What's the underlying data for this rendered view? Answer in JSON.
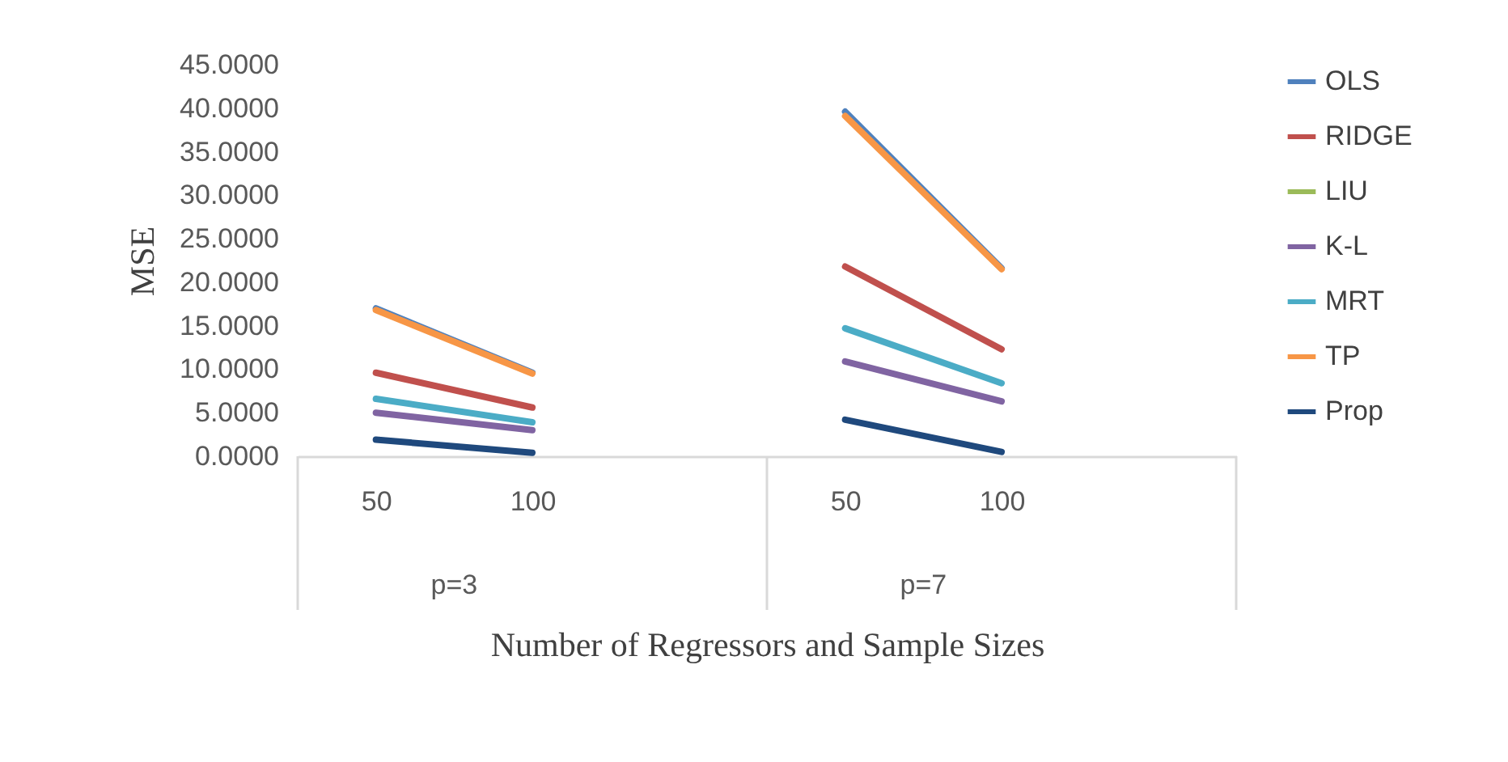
{
  "chart_data": {
    "type": "line",
    "xlabel": "Number of Regressors and Sample Sizes",
    "ylabel": "MSE",
    "categories": [
      "50",
      "100",
      null,
      "50",
      "100",
      null
    ],
    "annotations": [
      "p=3",
      "p=7"
    ],
    "series": [
      {
        "name": "OLS",
        "color": "#4f81bd",
        "values": [
          17.0,
          9.6,
          null,
          39.6,
          21.6,
          null
        ]
      },
      {
        "name": "RIDGE",
        "color": "#c0504d",
        "values": [
          9.6,
          5.6,
          null,
          21.8,
          12.3,
          null
        ]
      },
      {
        "name": "LIU",
        "color": "#9bbb59",
        "values": [
          null,
          null,
          null,
          null,
          null,
          null
        ]
      },
      {
        "name": "K-L",
        "color": "#8064a2",
        "values": [
          5.0,
          3.0,
          null,
          10.9,
          6.3,
          null
        ]
      },
      {
        "name": "MRT",
        "color": "#4bacc6",
        "values": [
          6.6,
          3.9,
          null,
          14.7,
          8.4,
          null
        ]
      },
      {
        "name": "TP",
        "color": "#f79646",
        "values": [
          16.8,
          9.5,
          null,
          39.1,
          21.5,
          null
        ]
      },
      {
        "name": "Prop",
        "color": "#1f497d",
        "values": [
          1.9,
          0.4,
          null,
          4.2,
          0.5,
          null
        ]
      }
    ],
    "ylim": [
      0,
      45
    ],
    "yticks": [
      {
        "value": 0,
        "label": "0.0000"
      },
      {
        "value": 5,
        "label": "5.0000"
      },
      {
        "value": 10,
        "label": "10.0000"
      },
      {
        "value": 15,
        "label": "15.0000"
      },
      {
        "value": 20,
        "label": "20.0000"
      },
      {
        "value": 25,
        "label": "25.0000"
      },
      {
        "value": 30,
        "label": "30.0000"
      },
      {
        "value": 35,
        "label": "35.0000"
      },
      {
        "value": 40,
        "label": "40.0000"
      },
      {
        "value": 45,
        "label": "45.0000"
      }
    ],
    "grid": false,
    "legend": "right"
  }
}
